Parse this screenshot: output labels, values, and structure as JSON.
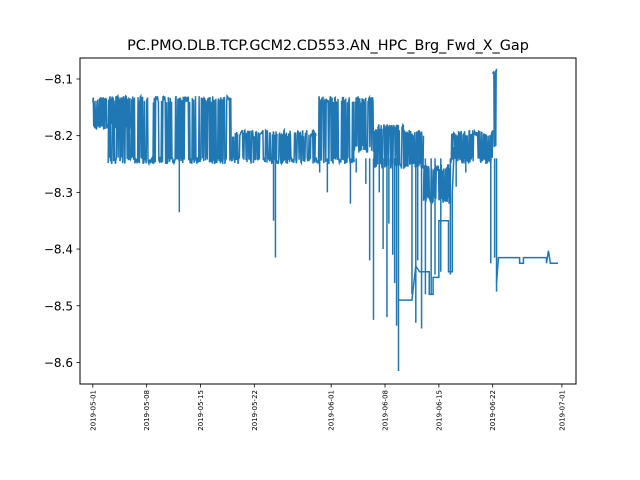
{
  "chart_data": {
    "type": "line",
    "title": "PC.PMO.DLB.TCP.GCM2.CD553.AN_HPC_Brg_Fwd_X_Gap",
    "xlabel": "",
    "ylabel": "",
    "grid": false,
    "legend": "none",
    "x_type": "date",
    "xlim": [
      "2019-04-29T08:00",
      "2019-07-02T20:00"
    ],
    "ylim": [
      -8.638,
      -8.063
    ],
    "x_ticks": [
      "2019-05-01",
      "2019-05-08",
      "2019-05-15",
      "2019-05-22",
      "2019-06-01",
      "2019-06-08",
      "2019-06-15",
      "2019-06-22",
      "2019-07-01"
    ],
    "y_ticks": [
      "−8.1",
      "−8.2",
      "−8.3",
      "−8.4",
      "−8.5",
      "−8.6"
    ],
    "y_tick_values": [
      -8.1,
      -8.2,
      -8.3,
      -8.4,
      -8.5,
      -8.6
    ],
    "series": [
      {
        "color": "#1f77b4",
        "segments": [
          {
            "start": "2019-05-01",
            "end": "2019-05-06",
            "lo": -8.19,
            "hi": -8.13
          },
          {
            "start": "2019-05-03T00:00",
            "end": "2019-05-07T00:00",
            "lo": -8.25,
            "hi": -8.13
          },
          {
            "start": "2019-05-07",
            "end": "2019-05-13",
            "lo": -8.25,
            "hi": -8.13
          },
          {
            "start": "2019-05-13",
            "end": "2019-05-19",
            "lo": -8.25,
            "hi": -8.13
          },
          {
            "start": "2019-05-19",
            "end": "2019-05-25",
            "lo": -8.25,
            "hi": -8.19
          },
          {
            "start": "2019-05-25",
            "end": "2019-05-30",
            "lo": -8.25,
            "hi": -8.19
          },
          {
            "start": "2019-05-30",
            "end": "2019-06-04",
            "lo": -8.25,
            "hi": -8.13
          },
          {
            "start": "2019-06-04",
            "end": "2019-06-06T12:00",
            "lo": -8.23,
            "hi": -8.13
          },
          {
            "start": "2019-06-06T12:00",
            "end": "2019-06-10T12:00",
            "lo": -8.26,
            "hi": -8.18
          },
          {
            "start": "2019-06-10T12:00",
            "end": "2019-06-13",
            "lo": -8.26,
            "hi": -8.19
          },
          {
            "start": "2019-06-13",
            "end": "2019-06-16T12:00",
            "lo": -8.32,
            "hi": -8.25
          },
          {
            "start": "2019-06-16T12:00",
            "end": "2019-06-22",
            "lo": -8.25,
            "hi": -8.19
          },
          {
            "start": "2019-06-22",
            "end": "2019-06-22T12:00",
            "lo": -8.22,
            "hi": -8.08
          }
        ],
        "spikes": [
          {
            "x": "2019-05-12T06:00",
            "y": -8.335
          },
          {
            "x": "2019-05-24T12:00",
            "y": -8.35
          },
          {
            "x": "2019-05-24T18:00",
            "y": -8.415
          },
          {
            "x": "2019-05-30T12:00",
            "y": -8.265
          },
          {
            "x": "2019-05-31T12:00",
            "y": -8.3
          },
          {
            "x": "2019-06-03T12:00",
            "y": -8.32
          },
          {
            "x": "2019-06-04T06:00",
            "y": -8.265
          },
          {
            "x": "2019-06-05T12:00",
            "y": -8.285
          },
          {
            "x": "2019-06-06T00:00",
            "y": -8.42
          },
          {
            "x": "2019-06-06T12:00",
            "y": -8.525
          },
          {
            "x": "2019-06-07T06:00",
            "y": -8.3
          },
          {
            "x": "2019-06-07T18:00",
            "y": -8.4
          },
          {
            "x": "2019-06-08T06:00",
            "y": -8.52
          },
          {
            "x": "2019-06-08T12:00",
            "y": -8.355
          },
          {
            "x": "2019-06-09T00:00",
            "y": -8.41
          },
          {
            "x": "2019-06-09T06:00",
            "y": -8.46
          },
          {
            "x": "2019-06-09T12:00",
            "y": -8.535
          },
          {
            "x": "2019-06-09T18:00",
            "y": -8.615
          },
          {
            "x": "2019-06-11T12:00",
            "y": -8.48
          },
          {
            "x": "2019-06-12T00:00",
            "y": -8.53
          },
          {
            "x": "2019-06-12T06:00",
            "y": -8.42
          },
          {
            "x": "2019-06-12T18:00",
            "y": -8.54
          },
          {
            "x": "2019-06-13T06:00",
            "y": -8.48
          },
          {
            "x": "2019-06-14T00:00",
            "y": -8.48
          },
          {
            "x": "2019-06-14T12:00",
            "y": -8.445
          },
          {
            "x": "2019-06-15T06:00",
            "y": -8.44
          },
          {
            "x": "2019-06-16T12:00",
            "y": -8.445
          },
          {
            "x": "2019-06-17T06:00",
            "y": -8.29
          },
          {
            "x": "2019-06-18T12:00",
            "y": -8.265
          },
          {
            "x": "2019-06-21T18:00",
            "y": -8.425
          },
          {
            "x": "2019-06-22T06:00",
            "y": -8.415
          },
          {
            "x": "2019-06-22T12:00",
            "y": -8.475
          }
        ],
        "steps": [
          {
            "x": "2019-06-09T18:00",
            "y": -8.49
          },
          {
            "x": "2019-06-11T12:00",
            "y": -8.49
          },
          {
            "x": "2019-06-12T00:00",
            "y": -8.43
          },
          {
            "x": "2019-06-12T12:00",
            "y": -8.44
          },
          {
            "x": "2019-06-13T18:00",
            "y": -8.44
          },
          {
            "x": "2019-06-13T18:00",
            "y": -8.48
          },
          {
            "x": "2019-06-14T06:00",
            "y": -8.48
          },
          {
            "x": "2019-06-14T06:00",
            "y": -8.45
          },
          {
            "x": "2019-06-15T00:00",
            "y": -8.45
          },
          {
            "x": "2019-06-15T00:00",
            "y": -8.35
          },
          {
            "x": "2019-06-16T06:00",
            "y": -8.35
          },
          {
            "x": "2019-06-16T06:00",
            "y": -8.44
          },
          {
            "x": "2019-06-16T18:00",
            "y": -8.44
          },
          {
            "x": "2019-06-16T18:00",
            "y": -8.3
          },
          {
            "x": "2019-06-17T00:00",
            "y": -8.22
          }
        ],
        "tail": [
          {
            "x": "2019-06-22T12:00",
            "y": -8.46
          },
          {
            "x": "2019-06-22T18:00",
            "y": -8.415
          },
          {
            "x": "2019-06-25T12:00",
            "y": -8.415
          },
          {
            "x": "2019-06-25T12:00",
            "y": -8.425
          },
          {
            "x": "2019-06-26T00:00",
            "y": -8.425
          },
          {
            "x": "2019-06-26T00:00",
            "y": -8.415
          },
          {
            "x": "2019-06-29T00:00",
            "y": -8.415
          },
          {
            "x": "2019-06-29T00:00",
            "y": -8.425
          },
          {
            "x": "2019-06-29T06:00",
            "y": -8.403
          },
          {
            "x": "2019-06-29T12:00",
            "y": -8.425
          },
          {
            "x": "2019-06-30T12:00",
            "y": -8.425
          }
        ]
      }
    ]
  }
}
